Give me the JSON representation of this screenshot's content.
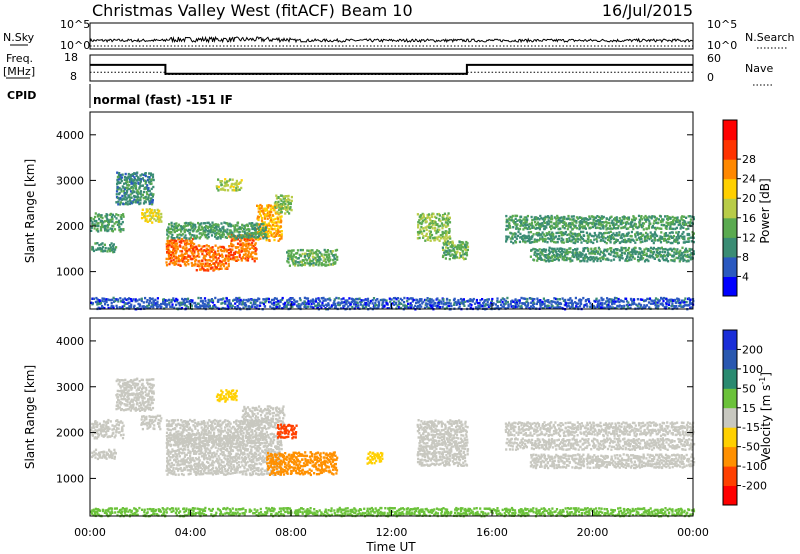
{
  "header": {
    "title": "Christmas Valley West (fitACF)",
    "beam": "Beam 10",
    "date": "16/Jul/2015"
  },
  "summary": {
    "nsky_label": "N.Sky",
    "nsearch_label": "N.Search",
    "sky_ticks": [
      "10^5",
      "10^0"
    ],
    "search_ticks": [
      "10^5",
      "10^0"
    ],
    "freq_label_1": "Freq.",
    "freq_label_2": "[MHz]",
    "freq_ticks": [
      "18",
      "8"
    ],
    "nave_label": "Nave",
    "nave_ticks": [
      "60",
      "0"
    ],
    "cpid_label": "CPID",
    "cpid_text": "normal (fast) -151 IF"
  },
  "chart_data": [
    {
      "type": "line",
      "name": "summary-frequency",
      "x_unit": "hours UT",
      "x": [
        0,
        3,
        3,
        15,
        15,
        24
      ],
      "freq_mhz": [
        14.2,
        14.2,
        10.8,
        10.8,
        14.2,
        14.2
      ],
      "nave": [
        20,
        20,
        15,
        15,
        20,
        20
      ],
      "ylim_freq": [
        8,
        18
      ],
      "ylim_nave": [
        0,
        60
      ]
    },
    {
      "type": "heatmap",
      "name": "power",
      "ylabel": "Slant Range [km]",
      "ylim": [
        180,
        4500
      ],
      "yticks": [
        "1000",
        "2000",
        "3000",
        "4000"
      ],
      "xlim": [
        0,
        24
      ],
      "colorbar_label": "Power [dB]",
      "colorbar_ticks": [
        "4",
        "8",
        "12",
        "16",
        "20",
        "24",
        "28"
      ],
      "colorbar_colors": [
        "#0000ff",
        "#2a59c0",
        "#3a8c74",
        "#5aaa50",
        "#b8cc48",
        "#ffd000",
        "#ff8800",
        "#ff3300",
        "#ff0000"
      ],
      "regions": [
        {
          "t0": 0.0,
          "t1": 1.3,
          "r0": 1900,
          "r1": 2300,
          "level": 12
        },
        {
          "t0": 0.0,
          "t1": 1.0,
          "r0": 1450,
          "r1": 1650,
          "level": 11
        },
        {
          "t0": 1.0,
          "t1": 2.5,
          "r0": 2500,
          "r1": 3200,
          "level": 10
        },
        {
          "t0": 2.0,
          "t1": 2.8,
          "r0": 2100,
          "r1": 2400,
          "level": 20
        },
        {
          "t0": 3.0,
          "t1": 4.2,
          "r0": 1150,
          "r1": 1750,
          "level": 27
        },
        {
          "t0": 4.2,
          "t1": 5.5,
          "r0": 1050,
          "r1": 1600,
          "level": 27
        },
        {
          "t0": 5.5,
          "t1": 6.6,
          "r0": 1250,
          "r1": 1850,
          "level": 27
        },
        {
          "t0": 6.6,
          "t1": 7.6,
          "r0": 1700,
          "r1": 2500,
          "level": 24
        },
        {
          "t0": 3.0,
          "t1": 7.0,
          "r0": 1750,
          "r1": 2100,
          "level": 12
        },
        {
          "t0": 5.0,
          "t1": 6.0,
          "r0": 2800,
          "r1": 3050,
          "level": 18
        },
        {
          "t0": 7.3,
          "t1": 8.0,
          "r0": 2300,
          "r1": 2700,
          "level": 16
        },
        {
          "t0": 7.8,
          "t1": 9.8,
          "r0": 1150,
          "r1": 1500,
          "level": 14
        },
        {
          "t0": 0.0,
          "t1": 24.0,
          "r0": 200,
          "r1": 450,
          "level": 6
        },
        {
          "t0": 13.0,
          "t1": 14.3,
          "r0": 1700,
          "r1": 2300,
          "level": 16
        },
        {
          "t0": 14.0,
          "t1": 15.0,
          "r0": 1300,
          "r1": 1700,
          "level": 14
        },
        {
          "t0": 16.5,
          "t1": 24.0,
          "r0": 1950,
          "r1": 2250,
          "level": 12
        },
        {
          "t0": 16.5,
          "t1": 24.0,
          "r0": 1650,
          "r1": 1900,
          "level": 11
        },
        {
          "t0": 17.5,
          "t1": 24.0,
          "r0": 1250,
          "r1": 1550,
          "level": 11
        }
      ]
    },
    {
      "type": "heatmap",
      "name": "velocity",
      "ylabel": "Slant Range [km]",
      "ylim": [
        180,
        4500
      ],
      "yticks": [
        "1000",
        "2000",
        "3000",
        "4000"
      ],
      "xlim": [
        0,
        24
      ],
      "xlabel": "Time UT",
      "xticks": [
        "00:00",
        "04:00",
        "08:00",
        "12:00",
        "16:00",
        "20:00",
        "00:00"
      ],
      "colorbar_label": "Velocity [m s",
      "colorbar_label_sup": "-1",
      "colorbar_label_end": "]",
      "colorbar_ticks": [
        "200",
        "100",
        "50",
        "15",
        "-15",
        "-50",
        "-100",
        "-200"
      ],
      "colorbar_colors": [
        "#1a2ed8",
        "#2a58b0",
        "#2a8a70",
        "#6bc23a",
        "#c8c8c0",
        "#ffd000",
        "#ff9000",
        "#ff4000",
        "#ff0000"
      ],
      "regions": [
        {
          "t0": 0.0,
          "t1": 1.3,
          "r0": 1900,
          "r1": 2300,
          "level": 0
        },
        {
          "t0": 0.0,
          "t1": 1.0,
          "r0": 1450,
          "r1": 1650,
          "level": 0
        },
        {
          "t0": 1.0,
          "t1": 2.5,
          "r0": 2500,
          "r1": 3200,
          "level": 0
        },
        {
          "t0": 2.0,
          "t1": 2.8,
          "r0": 2100,
          "r1": 2400,
          "level": 0
        },
        {
          "t0": 3.0,
          "t1": 7.6,
          "r0": 1100,
          "r1": 2000,
          "level": 0
        },
        {
          "t0": 3.0,
          "t1": 7.0,
          "r0": 1750,
          "r1": 2300,
          "level": 0
        },
        {
          "t0": 6.0,
          "t1": 7.7,
          "r0": 2100,
          "r1": 2600,
          "level": 0
        },
        {
          "t0": 7.4,
          "t1": 8.2,
          "r0": 1900,
          "r1": 2200,
          "level": -150
        },
        {
          "t0": 7.0,
          "t1": 9.8,
          "r0": 1100,
          "r1": 1600,
          "level": -60
        },
        {
          "t0": 5.0,
          "t1": 5.8,
          "r0": 2700,
          "r1": 2950,
          "level": -30
        },
        {
          "t0": 0.0,
          "t1": 24.0,
          "r0": 200,
          "r1": 380,
          "level": 40
        },
        {
          "t0": 13.0,
          "t1": 15.0,
          "r0": 1300,
          "r1": 2300,
          "level": 0
        },
        {
          "t0": 16.5,
          "t1": 24.0,
          "r0": 1950,
          "r1": 2250,
          "level": 0
        },
        {
          "t0": 16.5,
          "t1": 24.0,
          "r0": 1650,
          "r1": 1900,
          "level": 0
        },
        {
          "t0": 17.5,
          "t1": 24.0,
          "r0": 1250,
          "r1": 1550,
          "level": 0
        },
        {
          "t0": 11.0,
          "t1": 11.6,
          "r0": 1350,
          "r1": 1600,
          "level": -40
        }
      ]
    }
  ]
}
